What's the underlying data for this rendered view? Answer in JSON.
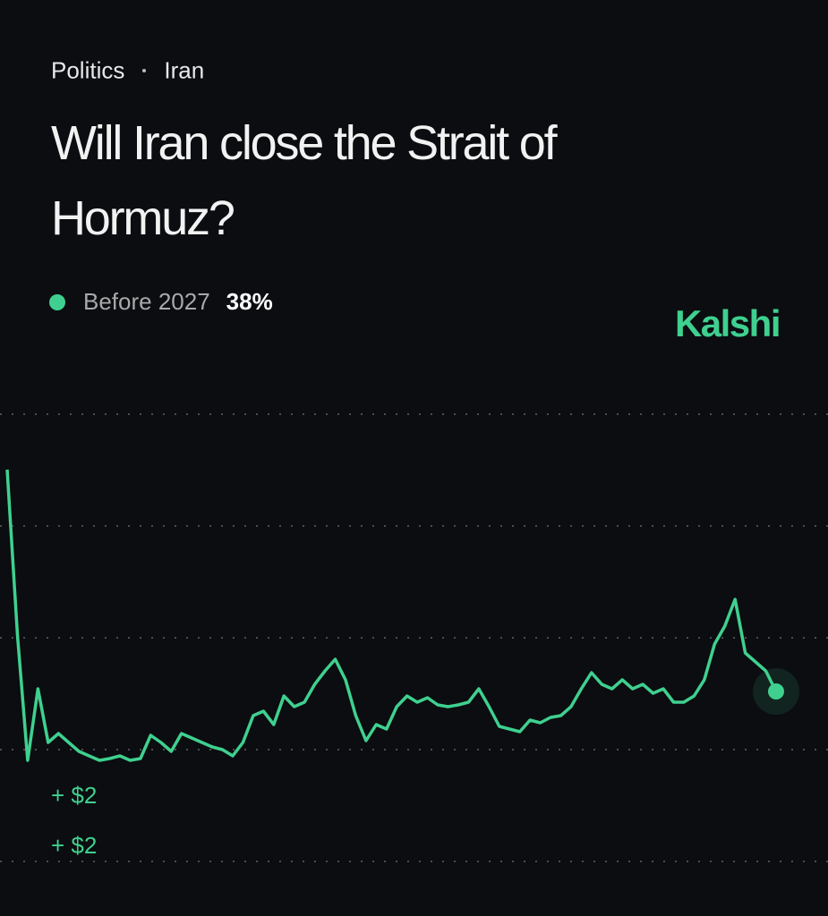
{
  "chart_data": {
    "type": "line",
    "breadcrumb": [
      "Politics",
      "Iran"
    ],
    "title": "Will Iran close the Strait of Hormuz?",
    "brand": "Kalshi",
    "series": [
      {
        "name": "Before 2027",
        "color": "#3fd08f",
        "current": {
          "value": 38,
          "label": "38%"
        },
        "values": [
          87.6,
          50.6,
          22.6,
          38.6,
          26.6,
          28.6,
          26.6,
          24.6,
          23.6,
          22.6,
          23,
          23.6,
          22.6,
          23,
          28.2,
          26.6,
          24.6,
          28.6,
          27.6,
          26.6,
          25.6,
          25,
          23.6,
          26.6,
          32.6,
          33.6,
          30.6,
          37,
          34.6,
          35.6,
          39.6,
          42.6,
          45.2,
          40.6,
          32.6,
          27,
          30.6,
          29.6,
          34.6,
          37,
          35.6,
          36.6,
          35,
          34.6,
          35,
          35.6,
          38.6,
          34.6,
          30.2,
          29.6,
          29,
          31.6,
          31,
          32.2,
          32.6,
          34.6,
          38.6,
          42.2,
          39.6,
          38.6,
          40.6,
          38.6,
          39.6,
          37.6,
          38.6,
          35.6,
          35.6,
          37,
          40.6,
          48.6,
          52.6,
          58.6,
          46.6,
          44.6,
          42.6,
          38
        ]
      }
    ],
    "annotations": [
      "+ $2",
      "+ $2"
    ],
    "ylim": [
      0,
      100
    ],
    "yticks": [
      0,
      25,
      50,
      75,
      100
    ],
    "grid": true,
    "show_tick_labels": false
  }
}
